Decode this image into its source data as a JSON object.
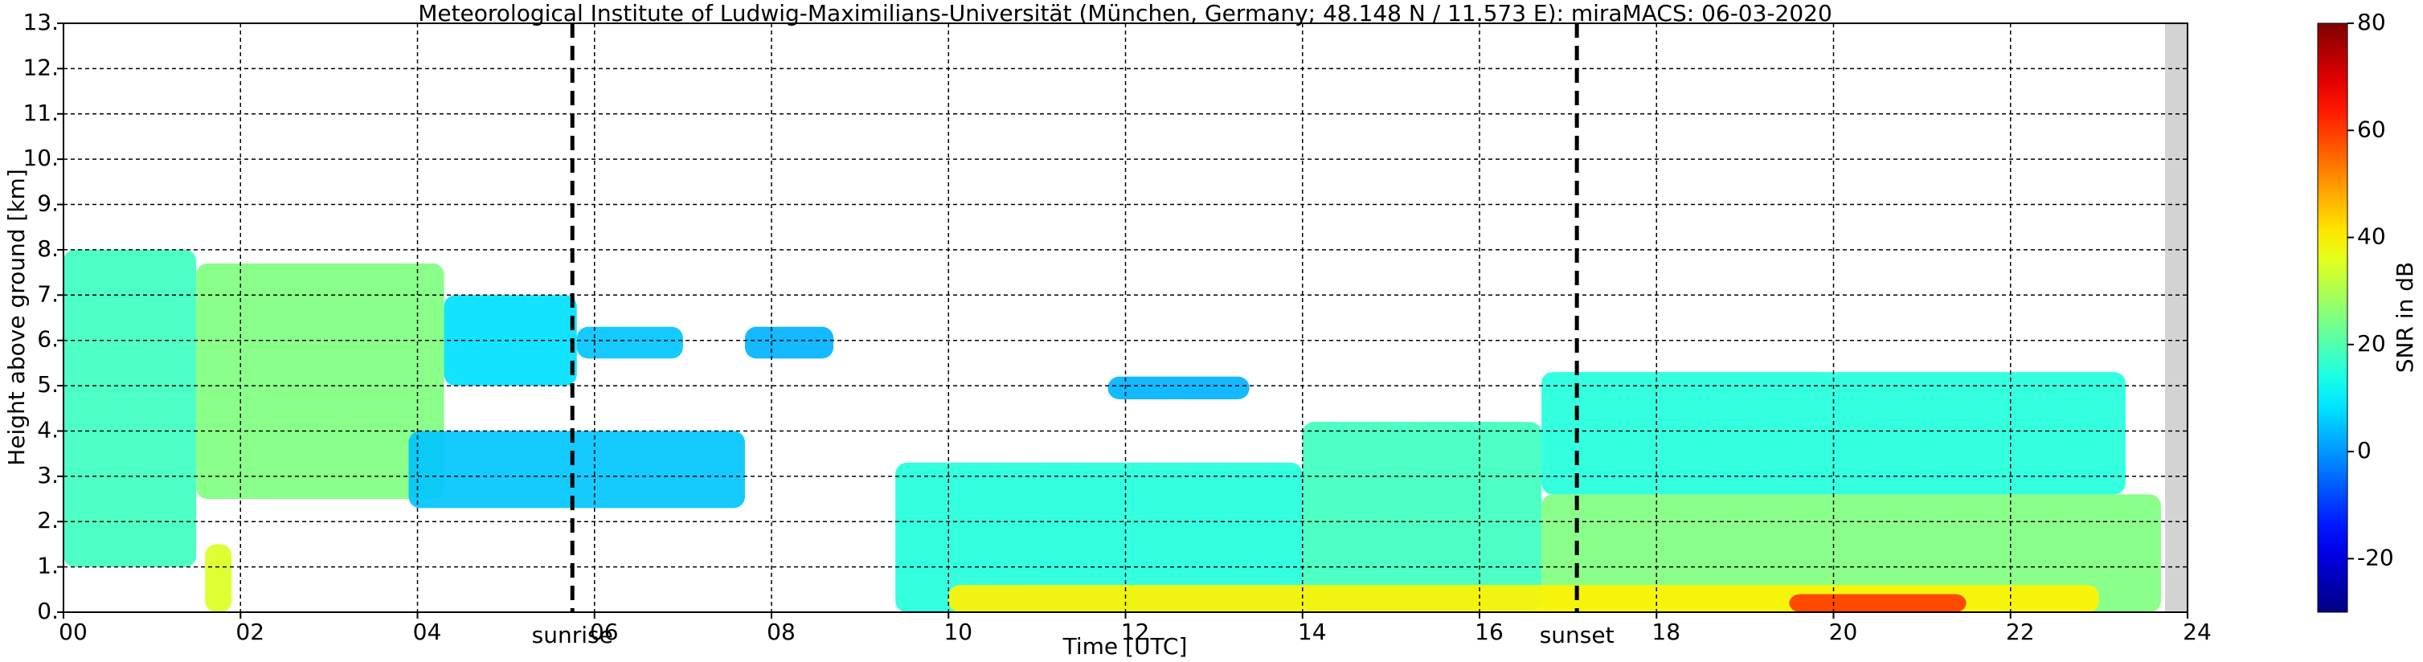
{
  "chart_data": {
    "type": "time-height",
    "title": "Meteorological Institute of Ludwig-Maximilians-Universität (München, Germany; 48.148 N / 11.573 E):    miraMACS: 06-03-2020",
    "x_label": "Time [UTC]",
    "y_label": "Height above ground [km]",
    "colorbar_label": "SNR in dB",
    "xlim": [
      0,
      24
    ],
    "ylim": [
      0,
      13
    ],
    "clim": [
      -30,
      80
    ],
    "colormap": "jet",
    "grid": true,
    "xticks": [
      {
        "value": 0,
        "label": "00"
      },
      {
        "value": 2,
        "label": "02"
      },
      {
        "value": 4,
        "label": "04"
      },
      {
        "value": 6,
        "label": "06"
      },
      {
        "value": 8,
        "label": "08"
      },
      {
        "value": 10,
        "label": "10"
      },
      {
        "value": 12,
        "label": "12"
      },
      {
        "value": 14,
        "label": "14"
      },
      {
        "value": 16,
        "label": "16"
      },
      {
        "value": 18,
        "label": "18"
      },
      {
        "value": 20,
        "label": "20"
      },
      {
        "value": 22,
        "label": "22"
      },
      {
        "value": 24,
        "label": "24"
      }
    ],
    "yticks": [
      {
        "value": 0,
        "label": "0."
      },
      {
        "value": 1,
        "label": "1."
      },
      {
        "value": 2,
        "label": "2."
      },
      {
        "value": 3,
        "label": "3."
      },
      {
        "value": 4,
        "label": "4."
      },
      {
        "value": 5,
        "label": "5."
      },
      {
        "value": 6,
        "label": "6."
      },
      {
        "value": 7,
        "label": "7."
      },
      {
        "value": 8,
        "label": "8."
      },
      {
        "value": 9,
        "label": "9."
      },
      {
        "value": 10,
        "label": "10."
      },
      {
        "value": 11,
        "label": "11."
      },
      {
        "value": 12,
        "label": "12."
      },
      {
        "value": 13,
        "label": "13."
      }
    ],
    "cticks": [
      -20,
      0,
      20,
      40,
      60,
      80
    ],
    "annotations": [
      {
        "x": 5.75,
        "label": "sunrise"
      },
      {
        "x": 17.1,
        "label": "sunset"
      }
    ],
    "cells": [
      {
        "x": [
          0,
          1.5
        ],
        "y": [
          1,
          8
        ],
        "value": 18
      },
      {
        "x": [
          1.5,
          4.3
        ],
        "y": [
          2.5,
          7.7
        ],
        "value": 25
      },
      {
        "x": [
          4.3,
          5.8
        ],
        "y": [
          5,
          7
        ],
        "value": 8
      },
      {
        "x": [
          5.8,
          7
        ],
        "y": [
          5.6,
          6.3
        ],
        "value": 5
      },
      {
        "x": [
          7.7,
          8.7
        ],
        "y": [
          5.6,
          6.3
        ],
        "value": 3
      },
      {
        "x": [
          3.9,
          7.7
        ],
        "y": [
          2.3,
          4
        ],
        "value": 5
      },
      {
        "x": [
          11.8,
          13.4
        ],
        "y": [
          4.7,
          5.2
        ],
        "value": 3
      },
      {
        "x": [
          1.6,
          1.9
        ],
        "y": [
          0,
          1.5
        ],
        "value": 35
      },
      {
        "x": [
          9.4,
          14
        ],
        "y": [
          0,
          3.3
        ],
        "value": 15
      },
      {
        "x": [
          14,
          16.7
        ],
        "y": [
          0,
          4.2
        ],
        "value": 18
      },
      {
        "x": [
          16.7,
          23.3
        ],
        "y": [
          2.6,
          5.3
        ],
        "value": 15
      },
      {
        "x": [
          16.7,
          23.7
        ],
        "y": [
          0,
          2.6
        ],
        "value": 25
      },
      {
        "x": [
          10,
          23
        ],
        "y": [
          0,
          0.6
        ],
        "value": 40
      },
      {
        "x": [
          19.5,
          21.5
        ],
        "y": [
          0,
          0.4
        ],
        "value": 60
      }
    ]
  }
}
